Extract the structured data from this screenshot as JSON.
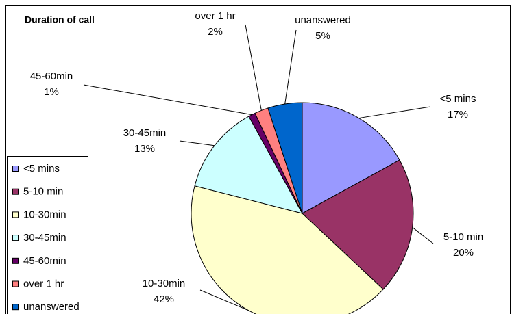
{
  "chart_data": {
    "type": "pie",
    "title": "Duration of call",
    "categories": [
      "<5 mins",
      "5-10 min",
      "10-30min",
      "30-45min",
      "45-60min",
      "over 1 hr",
      "unanswered"
    ],
    "values": [
      17,
      20,
      42,
      13,
      1,
      2,
      5
    ],
    "value_labels": [
      "17%",
      "20%",
      "42%",
      "13%",
      "1%",
      "2%",
      "5%"
    ],
    "colors": [
      "#9999ff",
      "#993366",
      "#ffffcc",
      "#ccffff",
      "#660066",
      "#ff8080",
      "#0066cc"
    ],
    "legend": "left"
  }
}
